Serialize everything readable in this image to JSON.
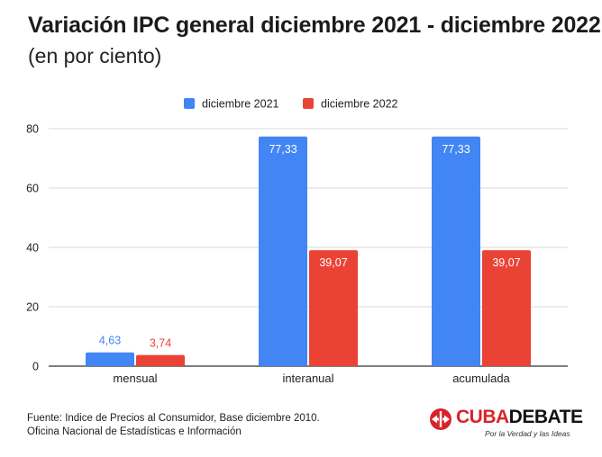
{
  "header": {
    "title": "Variación IPC general diciembre 2021 - diciembre 2022",
    "subtitle": "(en por ciento)"
  },
  "chart_data": {
    "type": "bar",
    "categories": [
      "mensual",
      "interanual",
      "acumulada"
    ],
    "series": [
      {
        "name": "diciembre 2021",
        "color": "#4285f4",
        "values": [
          4.63,
          77.33,
          77.33
        ],
        "labels": [
          "4,63",
          "77,33",
          "77,33"
        ]
      },
      {
        "name": "diciembre 2022",
        "color": "#ea4335",
        "values": [
          3.74,
          39.07,
          39.07
        ],
        "labels": [
          "3,74",
          "39,07",
          "39,07"
        ]
      }
    ],
    "yticks": [
      0,
      20,
      40,
      60,
      80
    ],
    "ylim": [
      0,
      80
    ],
    "grid": true,
    "legend": "top-center",
    "xlabel": "",
    "ylabel": ""
  },
  "footer": {
    "source_line1": "Fuente: Indice de Precios al Consumidor, Base diciembre 2010.",
    "source_line2": "Oficina Nacional de Estadísticas e Información"
  },
  "logo": {
    "part1": "CUBA",
    "part2": "DEBATE",
    "tagline": "Por la Verdad y las Ideas",
    "icon": "cubadebate-arrows-icon"
  }
}
